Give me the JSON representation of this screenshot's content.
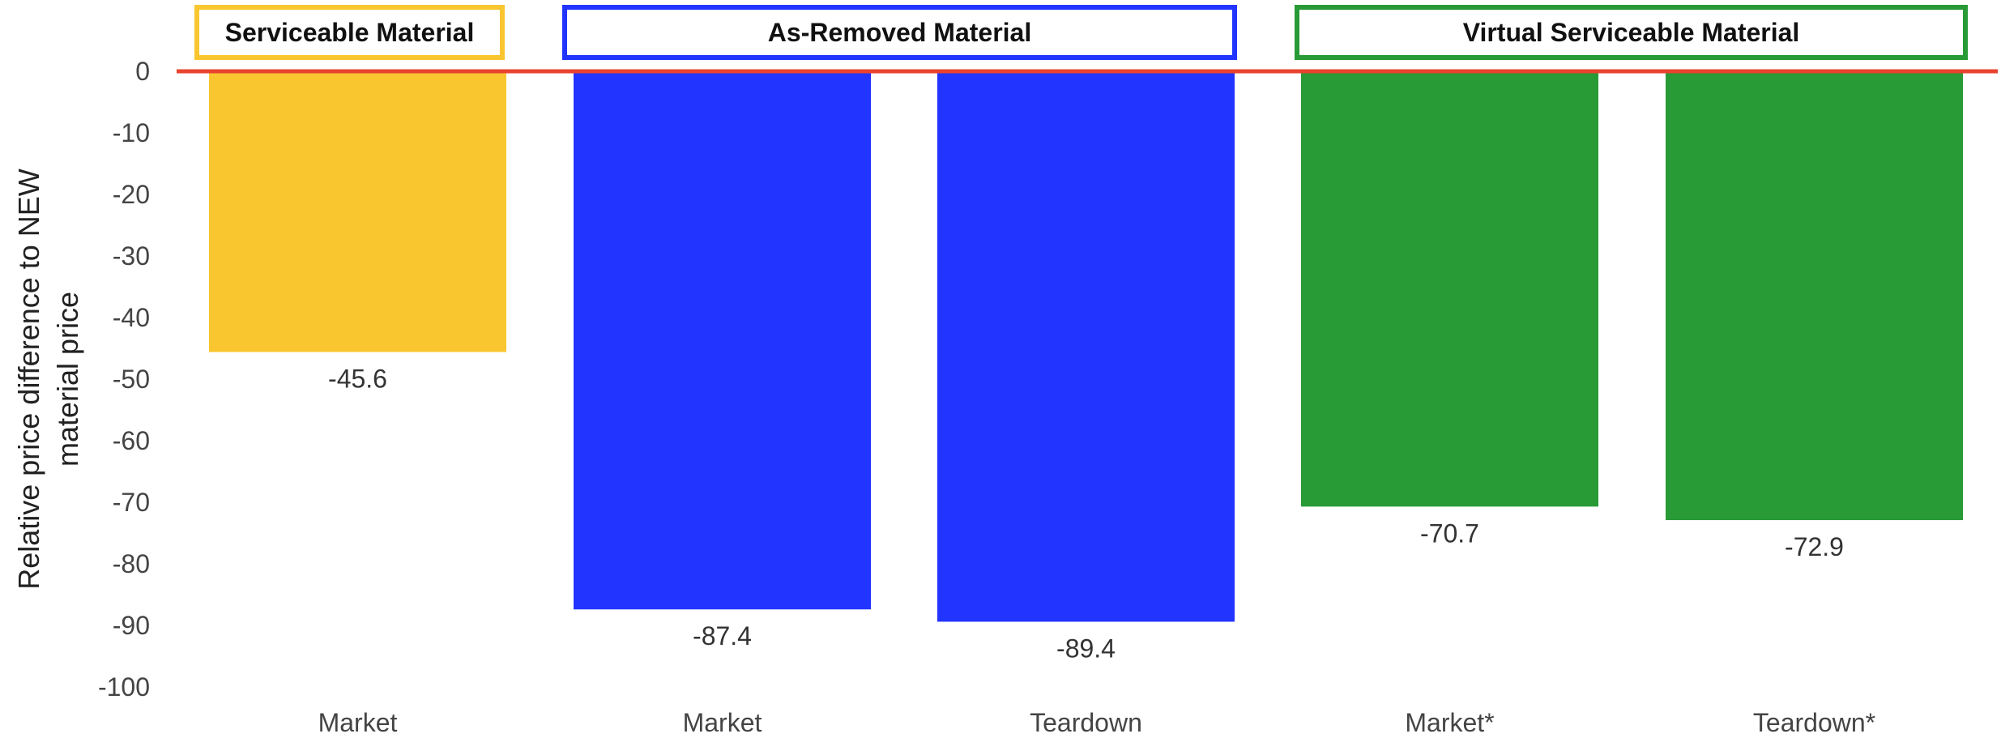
{
  "chart_data": {
    "type": "bar",
    "ylabel_lines": [
      "Relative price difference to NEW",
      "material price"
    ],
    "ylim": [
      -100,
      0
    ],
    "yticks": [
      0,
      -10,
      -20,
      -30,
      -40,
      -50,
      -60,
      -70,
      -80,
      -90,
      -100
    ],
    "grid": false,
    "categories": [
      "Market",
      "Market",
      "Teardown",
      "Market*",
      "Teardown*"
    ],
    "values": [
      -45.6,
      -87.4,
      -89.4,
      -70.7,
      -72.9
    ],
    "value_labels": [
      "-45.6",
      "-87.4",
      "-89.4",
      "-70.7",
      "-72.9"
    ],
    "bar_colors": [
      "#F9C630",
      "#2234FF",
      "#2234FF",
      "#289A36",
      "#289A36"
    ],
    "groups": [
      {
        "label": "Serviceable Material",
        "color": "#F9C630",
        "bar_indices": [
          0
        ]
      },
      {
        "label": "As-Removed Material",
        "color": "#2234FF",
        "bar_indices": [
          1,
          2
        ]
      },
      {
        "label": "Virtual Serviceable Material",
        "color": "#289A36",
        "bar_indices": [
          3,
          4
        ]
      }
    ],
    "baseline_color": "#E8432F"
  }
}
